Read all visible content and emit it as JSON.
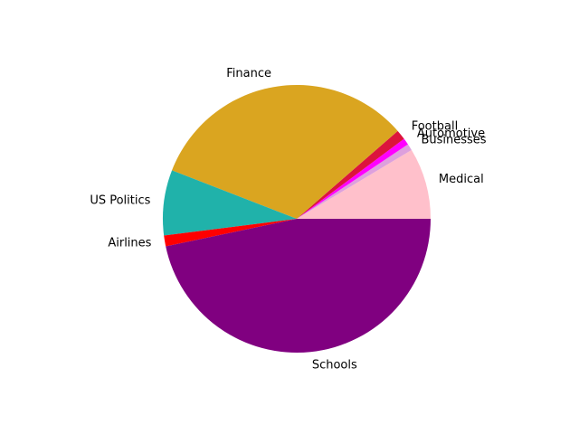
{
  "chart_data": {
    "type": "pie",
    "title": "",
    "labels": [
      "Medical",
      "Businesses",
      "Automotive",
      "Football",
      "Finance",
      "US Politics",
      "Airlines",
      "Schools"
    ],
    "values": [
      8.6,
      0.8,
      0.8,
      1.2,
      32.7,
      7.9,
      1.3,
      46.7
    ],
    "colors": [
      "#ffc0cb",
      "#dda0dd",
      "#ff00ff",
      "#dc143c",
      "#daa520",
      "#20b2aa",
      "#ff0000",
      "#800080"
    ],
    "start_angle_deg": 0,
    "direction": "counterclockwise",
    "legend": "none"
  }
}
